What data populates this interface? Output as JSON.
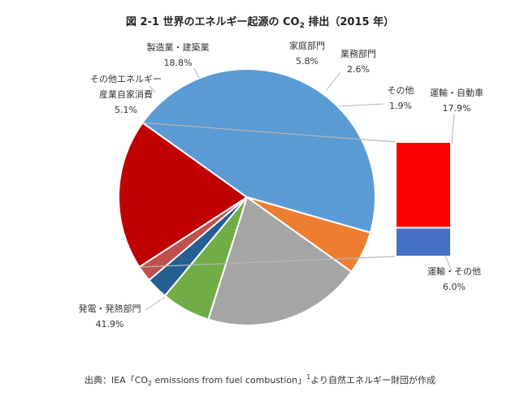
{
  "chart_data": {
    "type": "pie",
    "title": {
      "prefix": "図 2-1  世界のエネルギー起源の CO",
      "subscript": "2",
      "suffix": " 排出（2015 年）"
    },
    "slices": [
      {
        "name_lines": [
          "運輸・自動車"
        ],
        "value": 17.9,
        "value_label": "17.9%",
        "color": "#c00000"
      },
      {
        "name_lines": [
          "発電・発熱部門"
        ],
        "value": 41.9,
        "value_label": "41.9%",
        "color": "#5b9bd5"
      },
      {
        "name_lines": [
          "その他エネルギー",
          "産業自家消費"
        ],
        "value": 5.1,
        "value_label": "5.1%",
        "color": "#ed7d31"
      },
      {
        "name_lines": [
          "製造業・建築業"
        ],
        "value": 18.8,
        "value_label": "18.8%",
        "color": "#a5a5a5"
      },
      {
        "name_lines": [
          "家庭部門"
        ],
        "value": 5.8,
        "value_label": "5.8%",
        "color": "#70ad47"
      },
      {
        "name_lines": [
          "業務部門"
        ],
        "value": 2.6,
        "value_label": "2.6%",
        "color": "#255e91"
      },
      {
        "name_lines": [
          "その他"
        ],
        "value": 1.9,
        "value_label": "1.9%",
        "color": "#c0504d"
      }
    ],
    "transport_breakdown": [
      {
        "name": "運輸・自動車",
        "value": 17.9,
        "value_label": "17.9%",
        "color": "#ff0000"
      },
      {
        "name": "運輸・その他",
        "value": 6.0,
        "value_label": "6.0%",
        "color": "#4472c4"
      }
    ],
    "source": {
      "prefix": "出典：IEA「CO",
      "subscript": "2",
      "suffix": " emissions from fuel combustion」",
      "superscript": "1",
      "tail": "より自然エネルギー財団が作成"
    }
  }
}
